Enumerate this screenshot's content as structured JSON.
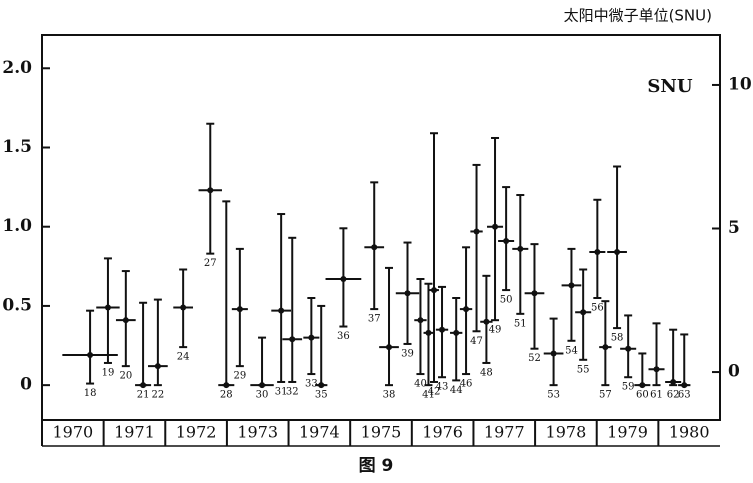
{
  "chart_data": {
    "type": "errorbar",
    "y2_label": "太阳中微子单位(SNU)",
    "inner_label": "SNU",
    "caption": "图 9",
    "color": "#111111",
    "xlim": [
      1970,
      1981
    ],
    "xticks": [
      {
        "value": 1970.5,
        "label": "1970"
      },
      {
        "value": 1971.5,
        "label": "1971"
      },
      {
        "value": 1972.5,
        "label": "1972"
      },
      {
        "value": 1973.5,
        "label": "1973"
      },
      {
        "value": 1974.5,
        "label": "1974"
      },
      {
        "value": 1975.5,
        "label": "1975"
      },
      {
        "value": 1976.5,
        "label": "1976"
      },
      {
        "value": 1977.5,
        "label": "1977"
      },
      {
        "value": 1978.5,
        "label": "1978"
      },
      {
        "value": 1979.5,
        "label": "1979"
      },
      {
        "value": 1980.5,
        "label": "1980"
      }
    ],
    "ylim": [
      -0.22,
      2.21
    ],
    "yticks": [
      0,
      0.5,
      {
        "value": 1,
        "label": "1.0"
      },
      1.5,
      {
        "value": 2,
        "label": "2.0"
      }
    ],
    "y2lim": [
      -1.67,
      11.74
    ],
    "y2ticks": [
      0,
      5,
      10
    ],
    "series": [
      {
        "labels": [
          "18",
          "19",
          "20",
          "21",
          "22",
          "24",
          "27",
          "28",
          "29",
          "30",
          "31",
          "32",
          "33",
          "35",
          "36",
          "37",
          "38",
          "39",
          "40",
          "41",
          "42",
          "43",
          "44",
          "46",
          "47",
          "48",
          "49",
          "50",
          "51",
          "52",
          "53",
          "54",
          "55",
          "56",
          "57",
          "58",
          "59",
          "60",
          "61",
          "62",
          "63"
        ],
        "x": [
          1970.78,
          1971.07,
          1971.36,
          1971.64,
          1971.88,
          1972.29,
          1972.73,
          1972.99,
          1973.21,
          1973.57,
          1973.88,
          1974.06,
          1974.37,
          1974.53,
          1974.89,
          1975.39,
          1975.63,
          1975.93,
          1976.14,
          1976.27,
          1976.36,
          1976.49,
          1976.72,
          1976.88,
          1977.05,
          1977.21,
          1977.35,
          1977.53,
          1977.76,
          1977.99,
          1978.3,
          1978.59,
          1978.78,
          1979.01,
          1979.14,
          1979.33,
          1979.51,
          1979.74,
          1979.97,
          1980.24,
          1980.42
        ],
        "x_err": [
          0.45,
          0.19,
          0.16,
          0.13,
          0.16,
          0.16,
          0.19,
          0.13,
          0.13,
          0.19,
          0.16,
          0.16,
          0.13,
          0.1,
          0.29,
          0.16,
          0.16,
          0.19,
          0.1,
          0.08,
          0.08,
          0.1,
          0.1,
          0.1,
          0.1,
          0.1,
          0.13,
          0.13,
          0.13,
          0.16,
          0.16,
          0.16,
          0.13,
          0.13,
          0.1,
          0.16,
          0.13,
          0.13,
          0.13,
          0.13,
          0.1
        ],
        "values": [
          0.19,
          0.49,
          0.41,
          0,
          0.12,
          0.49,
          1.23,
          0,
          0.48,
          0,
          0.47,
          0.29,
          0.3,
          0,
          0.67,
          0.87,
          0.24,
          0.58,
          0.41,
          0.33,
          0.6,
          0.35,
          0.33,
          0.48,
          0.97,
          0.4,
          1,
          0.91,
          0.86,
          0.58,
          0.2,
          0.63,
          0.46,
          0.84,
          0.24,
          0.84,
          0.23,
          0,
          0.1,
          0.02,
          0
        ],
        "lower": [
          0.01,
          0.14,
          0.12,
          0,
          0,
          0.24,
          0.83,
          0,
          0.12,
          0,
          0.02,
          0.02,
          0.07,
          0,
          0.37,
          0.48,
          0,
          0.26,
          0.07,
          0,
          0.02,
          0.05,
          0.03,
          0.07,
          0.34,
          0.14,
          0.41,
          0.6,
          0.45,
          0.23,
          0,
          0.28,
          0.16,
          0.55,
          0,
          0.36,
          0.05,
          0,
          0,
          0,
          0
        ],
        "upper": [
          0.47,
          0.8,
          0.72,
          0.52,
          0.54,
          0.73,
          1.65,
          1.16,
          0.86,
          0.3,
          1.08,
          0.93,
          0.55,
          0.5,
          0.99,
          1.28,
          0.74,
          0.9,
          0.67,
          0.64,
          1.59,
          0.62,
          0.55,
          0.87,
          1.39,
          0.69,
          1.56,
          1.25,
          1.2,
          0.89,
          0.42,
          0.86,
          0.73,
          1.17,
          0.53,
          1.38,
          0.44,
          0.2,
          0.39,
          0.35,
          0.32
        ]
      }
    ]
  }
}
